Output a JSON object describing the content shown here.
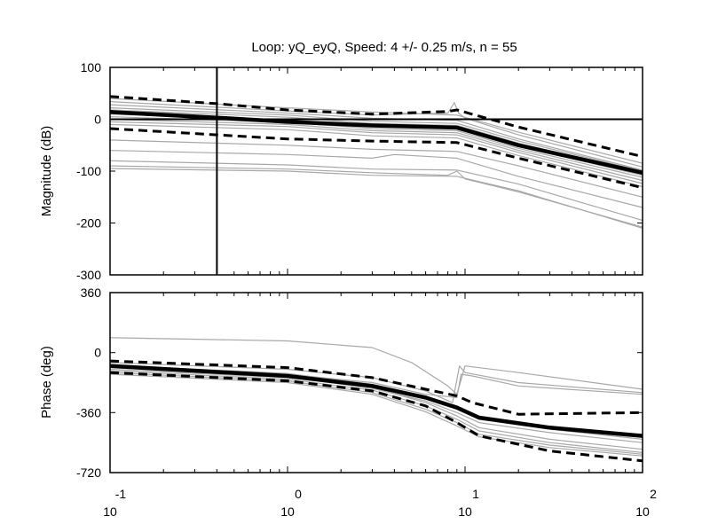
{
  "chart_data": {
    "type": "line",
    "title": "Loop: yQ_eyQ, Speed: 4 +/- 0.25 m/s, n = 55",
    "xscale": "log",
    "xlim": [
      0.1,
      100
    ],
    "x_ticks": [
      {
        "base": "10",
        "exp": "-1"
      },
      {
        "base": "10",
        "exp": "0"
      },
      {
        "base": "10",
        "exp": "1"
      },
      {
        "base": "10",
        "exp": "2"
      }
    ],
    "colors": {
      "mean": "#000000",
      "bounds": "#000000",
      "samples": "#a8a8a8",
      "reference": "#000000"
    },
    "panels": [
      {
        "id": "magnitude",
        "ylabel": "Magnitude (dB)",
        "ylim": [
          -300,
          100
        ],
        "yticks": [
          "100",
          "0",
          "-100",
          "-200",
          "-300"
        ],
        "reference_lines": {
          "horizontal_y": 0,
          "vertical_x": 0.4
        },
        "series": [
          {
            "role": "mean",
            "style": "solid-thick",
            "x": [
              0.1,
              0.4,
              1,
              3,
              9,
              20,
              100
            ],
            "y": [
              14,
              3,
              -5,
              -12,
              -16,
              -50,
              -103
            ]
          },
          {
            "role": "upper-bound",
            "style": "dashed",
            "x": [
              0.1,
              0.4,
              1,
              3,
              8,
              9,
              20,
              100
            ],
            "y": [
              44,
              30,
              18,
              10,
              15,
              18,
              -15,
              -72
            ]
          },
          {
            "role": "lower-bound",
            "style": "dashed",
            "x": [
              0.1,
              0.4,
              1,
              3,
              9,
              20,
              100
            ],
            "y": [
              -18,
              -30,
              -38,
              -42,
              -45,
              -75,
              -132
            ]
          },
          {
            "role": "sample",
            "style": "thin",
            "x": [
              0.1,
              1,
              3,
              9,
              20,
              100
            ],
            "y": [
              40,
              22,
              14,
              8,
              -25,
              -85
            ]
          },
          {
            "role": "sample",
            "style": "thin",
            "x": [
              0.1,
              1,
              3,
              8,
              8.7,
              9.2,
              10,
              20,
              100
            ],
            "y": [
              34,
              16,
              8,
              12,
              32,
              12,
              2,
              -30,
              -92
            ]
          },
          {
            "role": "sample",
            "style": "thin",
            "x": [
              0.1,
              1,
              3,
              9,
              20,
              100
            ],
            "y": [
              28,
              12,
              2,
              -2,
              -38,
              -98
            ]
          },
          {
            "role": "sample",
            "style": "thin",
            "x": [
              0.1,
              1,
              3,
              9,
              20,
              100
            ],
            "y": [
              22,
              8,
              -4,
              -8,
              -42,
              -100
            ]
          },
          {
            "role": "sample",
            "style": "thin",
            "x": [
              0.1,
              1,
              3,
              9,
              20,
              100
            ],
            "y": [
              18,
              4,
              -8,
              -12,
              -46,
              -104
            ]
          },
          {
            "role": "sample",
            "style": "thin",
            "x": [
              0.1,
              1,
              3,
              9,
              20,
              100
            ],
            "y": [
              10,
              -2,
              -14,
              -18,
              -52,
              -108
            ]
          },
          {
            "role": "sample",
            "style": "thin",
            "x": [
              0.1,
              1,
              3,
              9,
              20,
              100
            ],
            "y": [
              5,
              -6,
              -18,
              -22,
              -56,
              -112
            ]
          },
          {
            "role": "sample",
            "style": "thin",
            "x": [
              0.1,
              1,
              3,
              9,
              20,
              100
            ],
            "y": [
              0,
              -10,
              -22,
              -26,
              -60,
              -118
            ]
          },
          {
            "role": "sample",
            "style": "thin",
            "x": [
              0.1,
              1,
              3,
              9,
              20,
              100
            ],
            "y": [
              -5,
              -14,
              -26,
              -30,
              -64,
              -124
            ]
          },
          {
            "role": "sample",
            "style": "thin",
            "x": [
              0.1,
              1,
              3,
              9,
              20,
              100
            ],
            "y": [
              -10,
              -20,
              -32,
              -36,
              -70,
              -130
            ]
          },
          {
            "role": "sample",
            "style": "thin",
            "x": [
              0.1,
              1,
              3,
              9,
              20,
              100
            ],
            "y": [
              -40,
              -50,
              -58,
              -62,
              -90,
              -150
            ]
          },
          {
            "role": "sample",
            "style": "thin",
            "x": [
              0.1,
              1,
              3,
              4,
              9,
              20,
              100
            ],
            "y": [
              -60,
              -68,
              -75,
              -68,
              -75,
              -110,
              -170
            ]
          },
          {
            "role": "sample",
            "style": "thin",
            "x": [
              0.1,
              1,
              3,
              9,
              20,
              100
            ],
            "y": [
              -80,
              -88,
              -96,
              -98,
              -125,
              -195
            ]
          },
          {
            "role": "sample",
            "style": "thin",
            "x": [
              0.1,
              1,
              3,
              8,
              9,
              10,
              20,
              100
            ],
            "y": [
              -90,
              -96,
              -103,
              -108,
              -100,
              -115,
              -140,
              -208
            ]
          },
          {
            "role": "sample",
            "style": "thin",
            "x": [
              0.1,
              1,
              3,
              9,
              20,
              100
            ],
            "y": [
              -95,
              -100,
              -108,
              -110,
              -138,
              -210
            ]
          }
        ]
      },
      {
        "id": "phase",
        "ylabel": "Phase (deg)",
        "ylim": [
          -720,
          360
        ],
        "yticks": [
          "360",
          "0",
          "-360",
          "-720"
        ],
        "series": [
          {
            "role": "mean",
            "style": "solid-thick",
            "x": [
              0.1,
              1,
              3,
              6,
              9,
              12,
              30,
              100
            ],
            "y": [
              -80,
              -140,
              -200,
              -270,
              -330,
              -390,
              -450,
              -500
            ]
          },
          {
            "role": "upper-bound",
            "style": "dashed",
            "x": [
              0.1,
              1,
              3,
              6,
              9,
              11,
              20,
              100
            ],
            "y": [
              -50,
              -90,
              -150,
              -220,
              -260,
              -300,
              -370,
              -360
            ]
          },
          {
            "role": "lower-bound",
            "style": "dashed",
            "x": [
              0.1,
              1,
              3,
              6,
              9,
              12,
              30,
              100
            ],
            "y": [
              -120,
              -170,
              -230,
              -320,
              -420,
              -500,
              -590,
              -650
            ]
          },
          {
            "role": "sample",
            "style": "thin",
            "x": [
              0.1,
              1,
              3,
              5,
              8,
              9,
              10,
              20,
              100
            ],
            "y": [
              90,
              70,
              30,
              -60,
              -200,
              -250,
              -80,
              -120,
              -220
            ]
          },
          {
            "role": "sample",
            "style": "thin",
            "x": [
              0.1,
              1,
              3,
              6,
              8.5,
              9.3,
              10,
              20,
              100
            ],
            "y": [
              -60,
              -100,
              -150,
              -230,
              -300,
              -80,
              -120,
              -180,
              -240
            ]
          },
          {
            "role": "sample",
            "style": "thin",
            "x": [
              0.1,
              1,
              3,
              6,
              9,
              9.5,
              11,
              20,
              100
            ],
            "y": [
              -90,
              -130,
              -180,
              -250,
              -270,
              -130,
              -140,
              -200,
              -250
            ]
          },
          {
            "role": "sample",
            "style": "thin",
            "x": [
              0.1,
              1,
              3,
              6,
              9,
              12,
              30,
              100
            ],
            "y": [
              -100,
              -150,
              -210,
              -300,
              -380,
              -450,
              -520,
              -580
            ]
          },
          {
            "role": "sample",
            "style": "thin",
            "x": [
              0.1,
              1,
              3,
              6,
              9,
              12,
              30,
              100
            ],
            "y": [
              -110,
              -160,
              -225,
              -320,
              -400,
              -470,
              -540,
              -600
            ]
          },
          {
            "role": "sample",
            "style": "thin",
            "x": [
              0.1,
              1,
              3,
              6,
              9,
              12,
              30,
              100
            ],
            "y": [
              -120,
              -170,
              -240,
              -340,
              -420,
              -490,
              -555,
              -610
            ]
          },
          {
            "role": "sample",
            "style": "thin",
            "x": [
              0.1,
              1,
              3,
              6,
              9,
              12,
              30,
              100
            ],
            "y": [
              -130,
              -180,
              -250,
              -355,
              -440,
              -505,
              -570,
              -620
            ]
          },
          {
            "role": "sample",
            "style": "thin",
            "x": [
              0.1,
              1,
              3,
              6,
              9,
              12,
              30,
              100
            ],
            "y": [
              -90,
              -145,
              -215,
              -290,
              -360,
              -420,
              -480,
              -540
            ]
          },
          {
            "role": "sample",
            "style": "thin",
            "x": [
              0.1,
              1,
              3,
              6,
              9,
              12,
              30,
              100
            ],
            "y": [
              -75,
              -125,
              -190,
              -260,
              -340,
              -400,
              -460,
              -520
            ]
          }
        ]
      }
    ]
  }
}
